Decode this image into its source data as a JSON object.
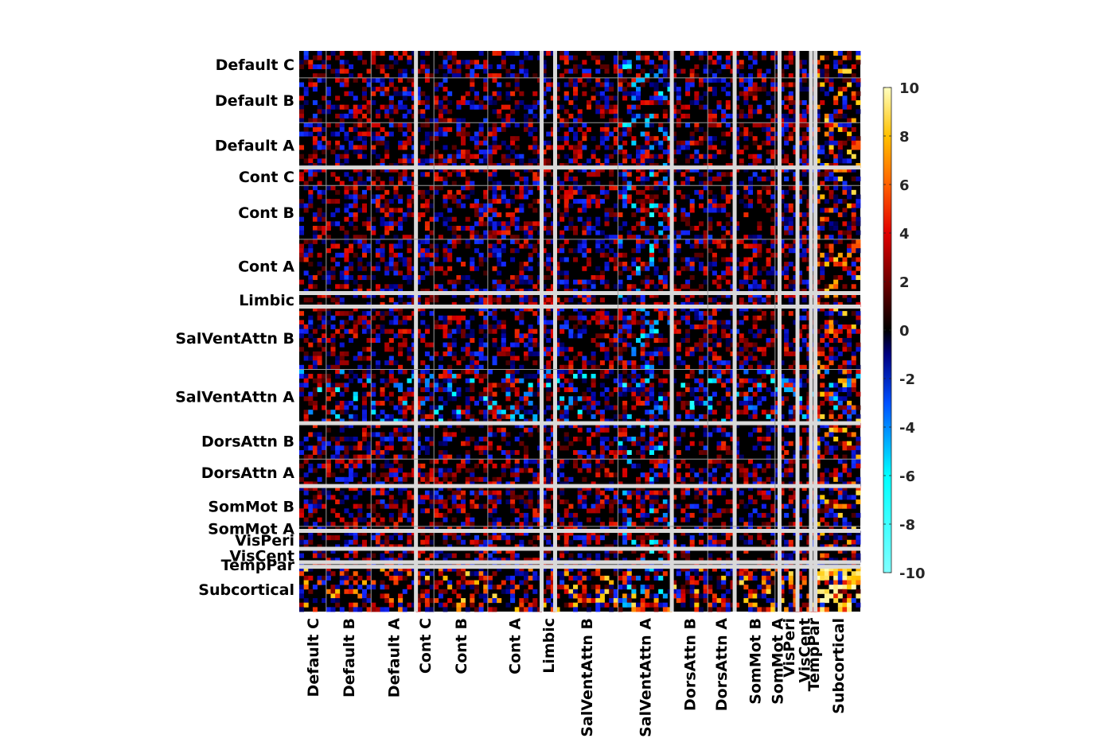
{
  "chart_data": {
    "type": "heatmap",
    "title": "",
    "xlabel": "",
    "ylabel": "",
    "networks": [
      "Default C",
      "Default B",
      "Default A",
      "Cont C",
      "Cont B",
      "Cont A",
      "Limbic",
      "SalVentAttn B",
      "SalVentAttn A",
      "DorsAttn B",
      "DorsAttn A",
      "SomMot B",
      "SomMot A",
      "VisPeri",
      "VisCent",
      "TempPar",
      "Subcortical"
    ],
    "row_labels": [
      "Default C",
      "Default B",
      "Default A",
      "Cont C",
      "Cont B",
      "Cont A",
      "Limbic",
      "SalVentAttn B",
      "SalVentAttn A",
      "DorsAttn B",
      "DorsAttn A",
      "SomMot B",
      "SomMot A",
      "VisPeri",
      "VisCent",
      "TempPar",
      "Subcortical"
    ],
    "col_labels": [
      "Default C",
      "Default B",
      "Default A",
      "Cont C",
      "Cont B",
      "Cont A",
      "Limbic",
      "SalVentAttn B",
      "SalVentAttn A",
      "DorsAttn B",
      "DorsAttn A",
      "SomMot B",
      "SomMot A",
      "VisPeri",
      "VisCent",
      "TempPar",
      "Subcortical"
    ],
    "block_sizes": [
      6,
      10,
      10,
      4,
      12,
      12,
      3,
      14,
      12,
      8,
      6,
      9,
      1,
      4,
      3,
      1,
      10
    ],
    "section_dividers_after_blocks": [
      2,
      5,
      6,
      8,
      10,
      12,
      13,
      14,
      15
    ],
    "clim": [
      -10,
      10
    ],
    "colormap": "hot-cold (cyan-blue-black-red-yellow)",
    "colorbar": {
      "ticks": [
        10,
        8,
        6,
        4,
        2,
        0,
        -2,
        -4,
        -6,
        -8,
        -10
      ],
      "colors": [
        "#00ffff",
        "#0000ff",
        "#000000",
        "#ff0000",
        "#ffff00",
        "#ffffff"
      ]
    },
    "grid": true,
    "notable_regions": [
      {
        "rows": "Subcortical",
        "cols": "Subcortical",
        "value": 10
      },
      {
        "rows": "Default B",
        "cols": "Subcortical",
        "value": 8
      },
      {
        "rows": "SalVentAttn A",
        "cols": "SalVentAttn A",
        "value": -8
      }
    ]
  }
}
